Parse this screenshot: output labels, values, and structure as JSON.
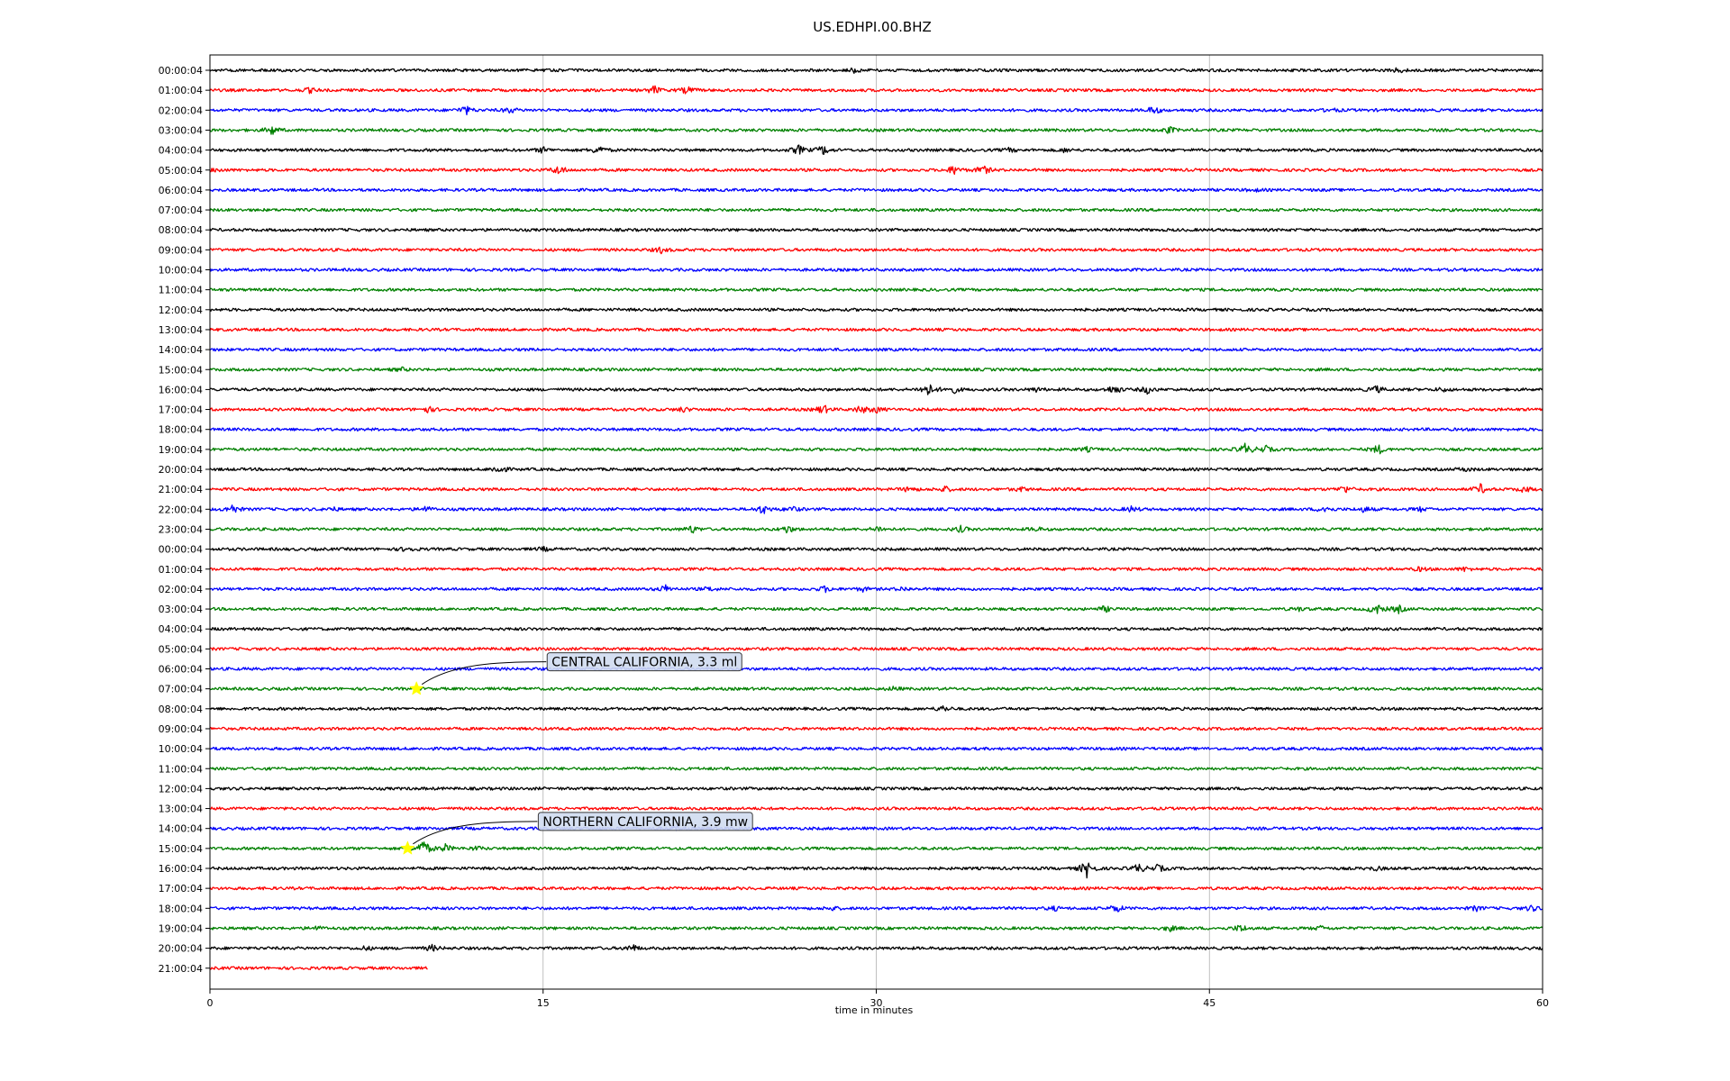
{
  "chart_data": {
    "type": "line",
    "title": "US.EDHPI.00.BHZ",
    "xlabel": "time in minutes",
    "ylabel": "",
    "xlim": [
      0,
      60
    ],
    "xticks": [
      "0",
      "15",
      "30",
      "45",
      "60"
    ],
    "grid": "vertical",
    "colors": [
      "#000000",
      "#ff0000",
      "#0000ff",
      "#008000"
    ],
    "rows": [
      {
        "label": "00:00:04",
        "end": 60,
        "events": [
          [
            29,
            2
          ],
          [
            53.5,
            2.5
          ]
        ]
      },
      {
        "label": "01:00:04",
        "end": 60,
        "events": [
          [
            4.5,
            2.5
          ],
          [
            20,
            4.5
          ],
          [
            21.5,
            4
          ]
        ]
      },
      {
        "label": "02:00:04",
        "end": 60,
        "events": [
          [
            11.5,
            5
          ],
          [
            13.5,
            3
          ],
          [
            42.5,
            4.5
          ],
          [
            50.5,
            2
          ]
        ]
      },
      {
        "label": "03:00:04",
        "end": 60,
        "events": [
          [
            2.8,
            5
          ],
          [
            43.2,
            3.5
          ]
        ]
      },
      {
        "label": "04:00:04",
        "end": 60,
        "events": [
          [
            15,
            3
          ],
          [
            17.5,
            5
          ],
          [
            26.5,
            5
          ],
          [
            27.6,
            5
          ],
          [
            36,
            2
          ],
          [
            38.5,
            2
          ]
        ]
      },
      {
        "label": "05:00:04",
        "end": 60,
        "events": [
          [
            0.3,
            2
          ],
          [
            15.7,
            5
          ],
          [
            33.5,
            5
          ],
          [
            34.8,
            5
          ]
        ]
      },
      {
        "label": "06:00:04",
        "end": 60,
        "events": [
          [
            47,
            1.5
          ]
        ]
      },
      {
        "label": "07:00:04",
        "end": 60,
        "events": []
      },
      {
        "label": "08:00:04",
        "end": 60,
        "events": []
      },
      {
        "label": "09:00:04",
        "end": 60,
        "events": [
          [
            20.3,
            3
          ]
        ]
      },
      {
        "label": "10:00:04",
        "end": 60,
        "events": []
      },
      {
        "label": "11:00:04",
        "end": 60,
        "events": []
      },
      {
        "label": "12:00:04",
        "end": 60,
        "events": []
      },
      {
        "label": "13:00:04",
        "end": 60,
        "events": []
      },
      {
        "label": "14:00:04",
        "end": 60,
        "events": []
      },
      {
        "label": "15:00:04",
        "end": 60,
        "events": [
          [
            8.6,
            2
          ]
        ]
      },
      {
        "label": "16:00:04",
        "end": 60,
        "events": [
          [
            32.3,
            8
          ],
          [
            33.4,
            5
          ],
          [
            37.2,
            2
          ],
          [
            40.7,
            5
          ],
          [
            42.2,
            4
          ],
          [
            52.5,
            4
          ],
          [
            55.5,
            2
          ]
        ]
      },
      {
        "label": "17:00:04",
        "end": 60,
        "events": [
          [
            9.8,
            3
          ],
          [
            21.3,
            2.5
          ],
          [
            27.6,
            5
          ],
          [
            29.3,
            4
          ],
          [
            30,
            3
          ]
        ]
      },
      {
        "label": "18:00:04",
        "end": 60,
        "events": []
      },
      {
        "label": "19:00:04",
        "end": 60,
        "events": [
          [
            39.5,
            2
          ],
          [
            46.6,
            6
          ],
          [
            47.5,
            4
          ],
          [
            52.6,
            5
          ]
        ]
      },
      {
        "label": "20:00:04",
        "end": 60,
        "events": [
          [
            13,
            5
          ],
          [
            56.5,
            2
          ]
        ]
      },
      {
        "label": "21:00:04",
        "end": 60,
        "events": [
          [
            31.5,
            3
          ],
          [
            33.1,
            3
          ],
          [
            36.5,
            2
          ],
          [
            51.1,
            4
          ],
          [
            57.2,
            5
          ],
          [
            59.2,
            3
          ]
        ]
      },
      {
        "label": "22:00:04",
        "end": 60,
        "events": [
          [
            1,
            5
          ],
          [
            5.5,
            2
          ],
          [
            9.7,
            3
          ],
          [
            24.9,
            5
          ],
          [
            26.2,
            3
          ],
          [
            41.5,
            3
          ],
          [
            50.2,
            4
          ],
          [
            52,
            3
          ],
          [
            54.5,
            2
          ]
        ]
      },
      {
        "label": "23:00:04",
        "end": 60,
        "events": [
          [
            21.7,
            4
          ],
          [
            26,
            4
          ],
          [
            30.1,
            3
          ],
          [
            33.8,
            3
          ],
          [
            37.2,
            2
          ]
        ]
      },
      {
        "label": "00:00:04",
        "end": 60,
        "events": [
          [
            8.9,
            3
          ],
          [
            15,
            2
          ]
        ]
      },
      {
        "label": "01:00:04",
        "end": 60,
        "events": [
          [
            54.5,
            2
          ],
          [
            56.5,
            2
          ]
        ]
      },
      {
        "label": "02:00:04",
        "end": 60,
        "events": [
          [
            20.5,
            4
          ],
          [
            22.5,
            2
          ],
          [
            27.7,
            3
          ],
          [
            29.4,
            2
          ],
          [
            31.2,
            2
          ]
        ]
      },
      {
        "label": "03:00:04",
        "end": 60,
        "events": [
          [
            40.3,
            3
          ],
          [
            49,
            2
          ],
          [
            52.5,
            6
          ],
          [
            53.5,
            4
          ]
        ]
      },
      {
        "label": "04:00:04",
        "end": 60,
        "events": []
      },
      {
        "label": "05:00:04",
        "end": 60,
        "events": []
      },
      {
        "label": "06:00:04",
        "end": 60,
        "events": []
      },
      {
        "label": "07:00:04",
        "end": 60,
        "events": [
          [
            30.8,
            2
          ]
        ]
      },
      {
        "label": "08:00:04",
        "end": 60,
        "events": [
          [
            33,
            3
          ]
        ]
      },
      {
        "label": "09:00:04",
        "end": 60,
        "events": []
      },
      {
        "label": "10:00:04",
        "end": 60,
        "events": []
      },
      {
        "label": "11:00:04",
        "end": 60,
        "events": []
      },
      {
        "label": "12:00:04",
        "end": 60,
        "events": []
      },
      {
        "label": "13:00:04",
        "end": 60,
        "events": []
      },
      {
        "label": "14:00:04",
        "end": 60,
        "events": [
          [
            21,
            2
          ]
        ]
      },
      {
        "label": "15:00:04",
        "end": 60,
        "events": [
          [
            9.6,
            10
          ],
          [
            10.6,
            4
          ],
          [
            12,
            2
          ]
        ]
      },
      {
        "label": "16:00:04",
        "end": 60,
        "events": [
          [
            39.5,
            10
          ],
          [
            41.8,
            5
          ],
          [
            42.7,
            4
          ],
          [
            52.5,
            2
          ]
        ]
      },
      {
        "label": "17:00:04",
        "end": 60,
        "events": []
      },
      {
        "label": "18:00:04",
        "end": 60,
        "events": [
          [
            28,
            2
          ],
          [
            38,
            2
          ],
          [
            40.8,
            4
          ],
          [
            57,
            2.5
          ],
          [
            59.5,
            3
          ]
        ]
      },
      {
        "label": "19:00:04",
        "end": 60,
        "events": [
          [
            4.8,
            2
          ],
          [
            43.2,
            3
          ],
          [
            46.4,
            4
          ],
          [
            50,
            2
          ]
        ]
      },
      {
        "label": "20:00:04",
        "end": 60,
        "events": [
          [
            7,
            2
          ],
          [
            10,
            3
          ],
          [
            19,
            4
          ]
        ]
      },
      {
        "label": "21:00:04",
        "end": 9.8,
        "events": []
      }
    ],
    "annotations": [
      {
        "text": "CENTRAL CALIFORNIA, 3.3 ml",
        "row": 31,
        "minute": 9.3
      },
      {
        "text": "NORTHERN CALIFORNIA, 3.9 mw",
        "row": 39,
        "minute": 8.9
      }
    ]
  }
}
